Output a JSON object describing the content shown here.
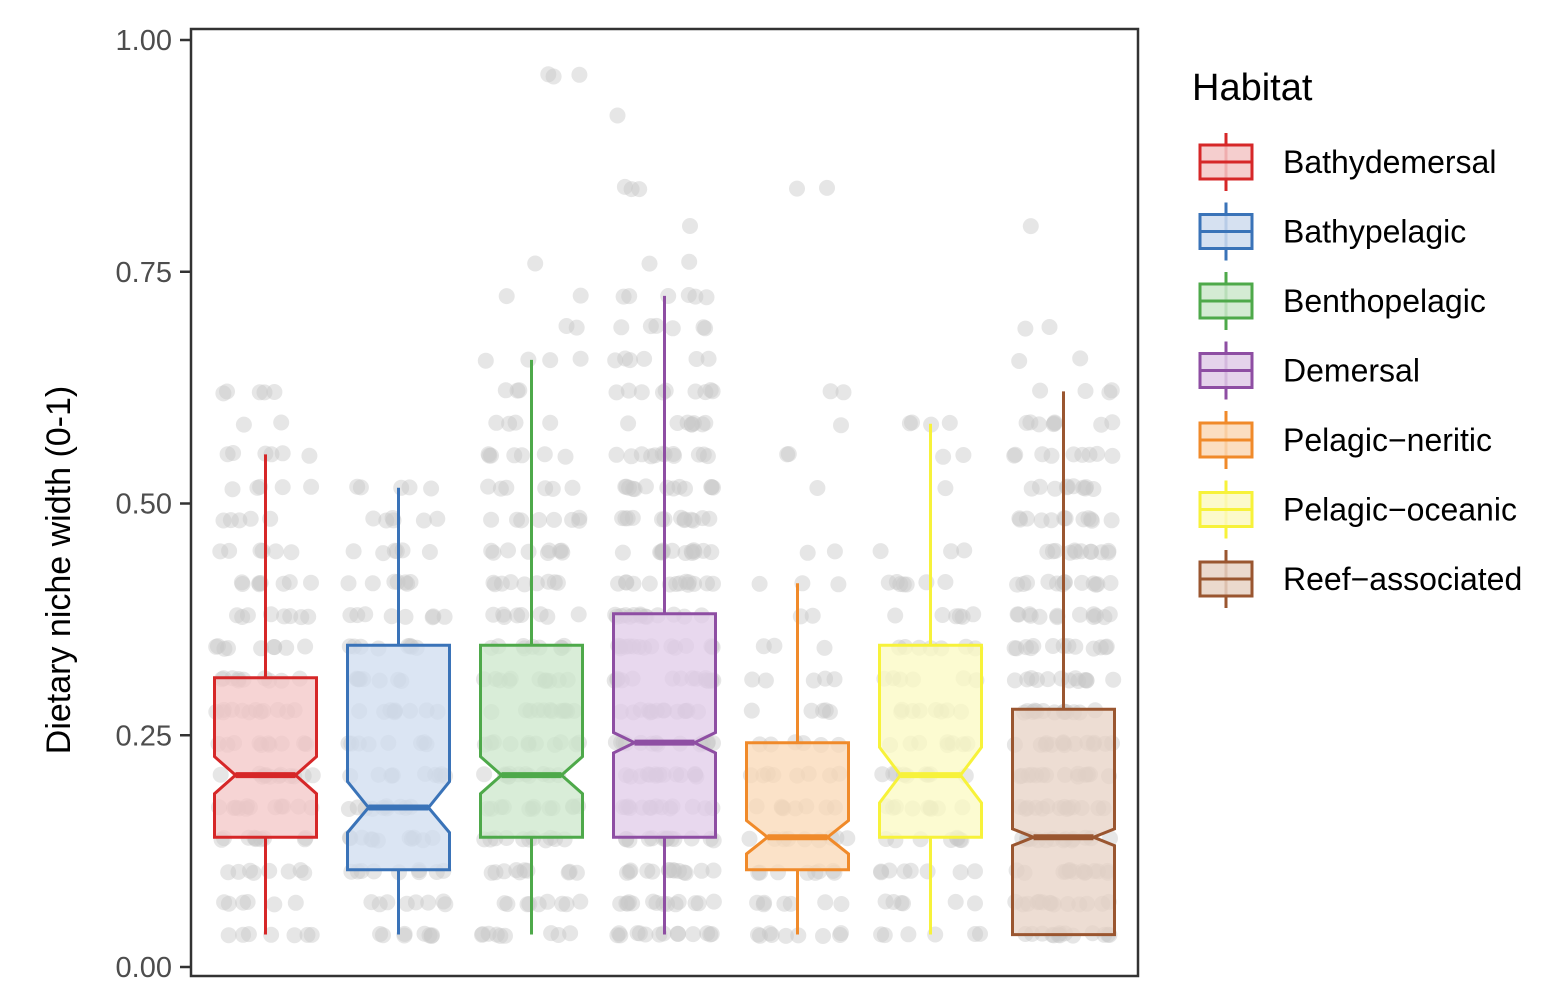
{
  "chart_data": {
    "type": "boxplot",
    "ylabel": "Dietary niche width (0-1)",
    "xlabel": "",
    "ylim": [
      0,
      1
    ],
    "yticks": [
      "0.00",
      "0.25",
      "0.50",
      "0.75",
      "1.00"
    ],
    "grid": false,
    "legend": {
      "title": "Habitat",
      "position": "right"
    },
    "series": [
      {
        "name": "Bathydemersal",
        "color": "#d62728",
        "fill": "#f3c5c5",
        "min": 0.035,
        "q1": 0.14,
        "median": 0.207,
        "q3": 0.312,
        "max": 0.553,
        "notch": [
          0.187,
          0.227
        ]
      },
      {
        "name": "Bathypelagic",
        "color": "#3a73b8",
        "fill": "#cfdcef",
        "min": 0.035,
        "q1": 0.105,
        "median": 0.172,
        "q3": 0.347,
        "max": 0.517,
        "notch": [
          0.145,
          0.2
        ]
      },
      {
        "name": "Benthopelagic",
        "color": "#4ea94a",
        "fill": "#cce7cb",
        "min": 0.035,
        "q1": 0.14,
        "median": 0.207,
        "q3": 0.347,
        "max": 0.655,
        "notch": [
          0.187,
          0.227
        ]
      },
      {
        "name": "Demersal",
        "color": "#8e4ea3",
        "fill": "#e0cbe8",
        "min": 0.035,
        "q1": 0.14,
        "median": 0.242,
        "q3": 0.381,
        "max": 0.724,
        "notch": [
          0.231,
          0.253
        ]
      },
      {
        "name": "Pelagic−neritic",
        "color": "#f08a2a",
        "fill": "#fad8b6",
        "min": 0.035,
        "q1": 0.105,
        "median": 0.14,
        "q3": 0.242,
        "max": 0.414,
        "notch": [
          0.122,
          0.158
        ]
      },
      {
        "name": "Pelagic−oceanic",
        "color": "#f7f23a",
        "fill": "#fbf9c2",
        "min": 0.035,
        "q1": 0.14,
        "median": 0.207,
        "q3": 0.347,
        "max": 0.586,
        "notch": [
          0.177,
          0.237
        ]
      },
      {
        "name": "Reef−associated",
        "color": "#9a5630",
        "fill": "#e7d2c4",
        "min": 0.035,
        "q1": 0.035,
        "median": 0.14,
        "q3": 0.278,
        "max": 0.621,
        "notch": [
          0.131,
          0.149
        ]
      }
    ],
    "jitter_points": [
      [
        0,
        0.62,
        5
      ],
      [
        0,
        0.586,
        2
      ],
      [
        0,
        0.553,
        6
      ],
      [
        0,
        0.517,
        5
      ],
      [
        0,
        0.483,
        5
      ],
      [
        0,
        0.448,
        6
      ],
      [
        0,
        0.414,
        8
      ],
      [
        0,
        0.379,
        8
      ],
      [
        0,
        0.345,
        9
      ],
      [
        0,
        0.31,
        10
      ],
      [
        0,
        0.276,
        12
      ],
      [
        0,
        0.241,
        10
      ],
      [
        0,
        0.207,
        12
      ],
      [
        0,
        0.172,
        12
      ],
      [
        0,
        0.138,
        10
      ],
      [
        0,
        0.103,
        8
      ],
      [
        0,
        0.069,
        6
      ],
      [
        0,
        0.035,
        7
      ],
      [
        1,
        0.517,
        5
      ],
      [
        1,
        0.483,
        6
      ],
      [
        1,
        0.448,
        6
      ],
      [
        1,
        0.414,
        7
      ],
      [
        1,
        0.379,
        8
      ],
      [
        1,
        0.345,
        8
      ],
      [
        1,
        0.31,
        8
      ],
      [
        1,
        0.276,
        9
      ],
      [
        1,
        0.241,
        8
      ],
      [
        1,
        0.207,
        9
      ],
      [
        1,
        0.172,
        10
      ],
      [
        1,
        0.138,
        11
      ],
      [
        1,
        0.103,
        9
      ],
      [
        1,
        0.069,
        8
      ],
      [
        1,
        0.035,
        8
      ],
      [
        2,
        0.655,
        4
      ],
      [
        2,
        0.621,
        3
      ],
      [
        2,
        0.586,
        4
      ],
      [
        2,
        0.552,
        7
      ],
      [
        2,
        0.517,
        6
      ],
      [
        2,
        0.483,
        8
      ],
      [
        2,
        0.448,
        9
      ],
      [
        2,
        0.414,
        9
      ],
      [
        2,
        0.379,
        8
      ],
      [
        2,
        0.345,
        9
      ],
      [
        2,
        0.31,
        11
      ],
      [
        2,
        0.276,
        12
      ],
      [
        2,
        0.241,
        11
      ],
      [
        2,
        0.207,
        12
      ],
      [
        2,
        0.172,
        12
      ],
      [
        2,
        0.138,
        11
      ],
      [
        2,
        0.103,
        10
      ],
      [
        2,
        0.069,
        9
      ],
      [
        2,
        0.035,
        9
      ],
      [
        2,
        0.962,
        3
      ],
      [
        2,
        0.76,
        1
      ],
      [
        2,
        0.724,
        2
      ],
      [
        2,
        0.69,
        2
      ],
      [
        3,
        0.92,
        1
      ],
      [
        3,
        0.84,
        3
      ],
      [
        3,
        0.8,
        1
      ],
      [
        3,
        0.76,
        2
      ],
      [
        3,
        0.724,
        6
      ],
      [
        3,
        0.69,
        6
      ],
      [
        3,
        0.655,
        6
      ],
      [
        3,
        0.621,
        9
      ],
      [
        3,
        0.586,
        8
      ],
      [
        3,
        0.552,
        12
      ],
      [
        3,
        0.517,
        13
      ],
      [
        3,
        0.483,
        13
      ],
      [
        3,
        0.448,
        14
      ],
      [
        3,
        0.414,
        14
      ],
      [
        3,
        0.379,
        14
      ],
      [
        3,
        0.345,
        14
      ],
      [
        3,
        0.31,
        14
      ],
      [
        3,
        0.276,
        14
      ],
      [
        3,
        0.241,
        14
      ],
      [
        3,
        0.207,
        14
      ],
      [
        3,
        0.172,
        14
      ],
      [
        3,
        0.138,
        14
      ],
      [
        3,
        0.103,
        14
      ],
      [
        3,
        0.069,
        14
      ],
      [
        3,
        0.035,
        14
      ],
      [
        4,
        0.84,
        2
      ],
      [
        4,
        0.62,
        2
      ],
      [
        4,
        0.586,
        1
      ],
      [
        4,
        0.552,
        2
      ],
      [
        4,
        0.517,
        1
      ],
      [
        4,
        0.448,
        2
      ],
      [
        4,
        0.414,
        3
      ],
      [
        4,
        0.379,
        2
      ],
      [
        4,
        0.345,
        3
      ],
      [
        4,
        0.31,
        5
      ],
      [
        4,
        0.276,
        5
      ],
      [
        4,
        0.241,
        6
      ],
      [
        4,
        0.207,
        8
      ],
      [
        4,
        0.172,
        8
      ],
      [
        4,
        0.138,
        9
      ],
      [
        4,
        0.103,
        8
      ],
      [
        4,
        0.069,
        7
      ],
      [
        4,
        0.035,
        9
      ],
      [
        5,
        0.586,
        4
      ],
      [
        5,
        0.552,
        2
      ],
      [
        5,
        0.517,
        1
      ],
      [
        5,
        0.448,
        3
      ],
      [
        5,
        0.414,
        7
      ],
      [
        5,
        0.379,
        6
      ],
      [
        5,
        0.345,
        7
      ],
      [
        5,
        0.31,
        6
      ],
      [
        5,
        0.276,
        8
      ],
      [
        5,
        0.241,
        8
      ],
      [
        5,
        0.207,
        9
      ],
      [
        5,
        0.172,
        9
      ],
      [
        5,
        0.138,
        8
      ],
      [
        5,
        0.103,
        8
      ],
      [
        5,
        0.069,
        6
      ],
      [
        5,
        0.035,
        6
      ],
      [
        6,
        0.8,
        1
      ],
      [
        6,
        0.69,
        2
      ],
      [
        6,
        0.655,
        2
      ],
      [
        6,
        0.621,
        4
      ],
      [
        6,
        0.586,
        8
      ],
      [
        6,
        0.552,
        9
      ],
      [
        6,
        0.517,
        10
      ],
      [
        6,
        0.483,
        12
      ],
      [
        6,
        0.448,
        12
      ],
      [
        6,
        0.414,
        13
      ],
      [
        6,
        0.379,
        13
      ],
      [
        6,
        0.345,
        13
      ],
      [
        6,
        0.31,
        13
      ],
      [
        6,
        0.276,
        13
      ],
      [
        6,
        0.241,
        14
      ],
      [
        6,
        0.207,
        14
      ],
      [
        6,
        0.172,
        14
      ],
      [
        6,
        0.138,
        14
      ],
      [
        6,
        0.103,
        14
      ],
      [
        6,
        0.069,
        14
      ],
      [
        6,
        0.035,
        14
      ]
    ]
  }
}
